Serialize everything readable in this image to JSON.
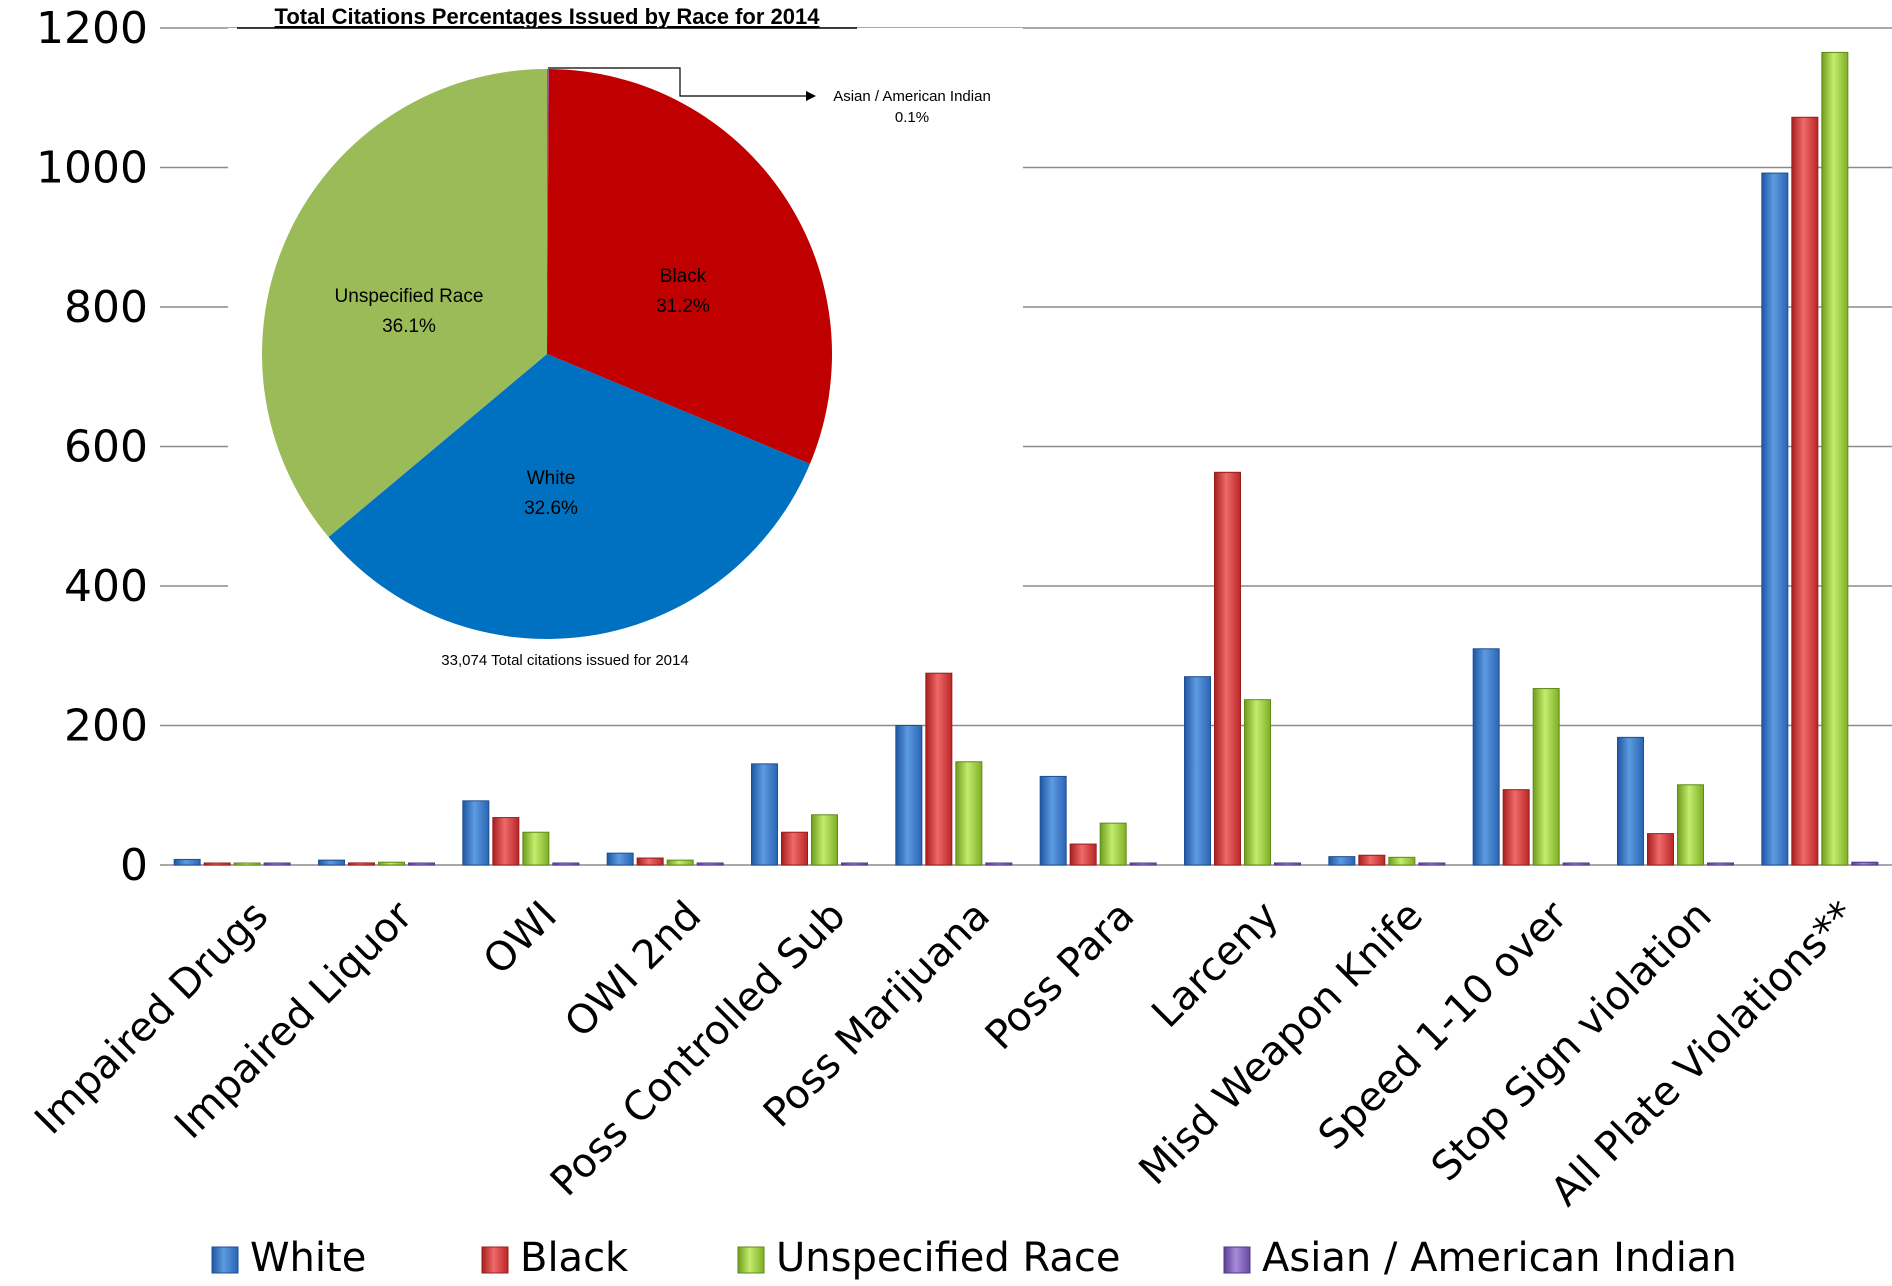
{
  "chart_data": [
    {
      "type": "bar",
      "categories": [
        "Impaired Drugs",
        "Impaired Liquor",
        "OWI",
        "OWI 2nd",
        "Poss Controlled Sub",
        "Poss Marijuana",
        "Poss Para",
        "Larceny",
        "Misd Weapon Knife",
        "Speed 1-10 over",
        "Stop Sign violation",
        "All Plate Violations**"
      ],
      "series": [
        {
          "name": "White",
          "values": [
            8,
            7,
            92,
            17,
            145,
            200,
            127,
            270,
            12,
            310,
            183,
            992
          ]
        },
        {
          "name": "Black",
          "values": [
            1,
            3,
            68,
            10,
            47,
            275,
            30,
            563,
            14,
            108,
            45,
            1072
          ]
        },
        {
          "name": "Unspecified Race",
          "values": [
            1,
            4,
            47,
            7,
            72,
            148,
            60,
            237,
            11,
            253,
            115,
            1165
          ]
        },
        {
          "name": "Asian / American Indian",
          "values": [
            0,
            0,
            0,
            0,
            0,
            0,
            0,
            1,
            0,
            0,
            0,
            4
          ]
        }
      ],
      "ylim": [
        0,
        1200
      ],
      "yticks": [
        "0",
        "200",
        "400",
        "600",
        "800",
        "1000",
        "1200"
      ],
      "grid": true,
      "legend": "bottom",
      "colors": {
        "White": "#3b78c8",
        "Black": "#d13838",
        "Unspecified Race": "#97c83c",
        "Asian / American Indian": "#7e5fb7"
      }
    },
    {
      "type": "pie",
      "title": "Total Citations Percentages Issued by Race for 2014",
      "slices": [
        {
          "name": "Asian / American Indian",
          "value": 0.1,
          "label": "0.1%",
          "color": "#7e5fb7"
        },
        {
          "name": "Black",
          "value": 31.2,
          "label": "31.2%",
          "color": "#c00000"
        },
        {
          "name": "White",
          "value": 32.6,
          "label": "32.6%",
          "color": "#0070c0"
        },
        {
          "name": "Unspecified Race",
          "value": 36.1,
          "label": "36.1%",
          "color": "#9bbb59"
        }
      ],
      "note": "33,074 Total citations issued for 2014"
    }
  ]
}
